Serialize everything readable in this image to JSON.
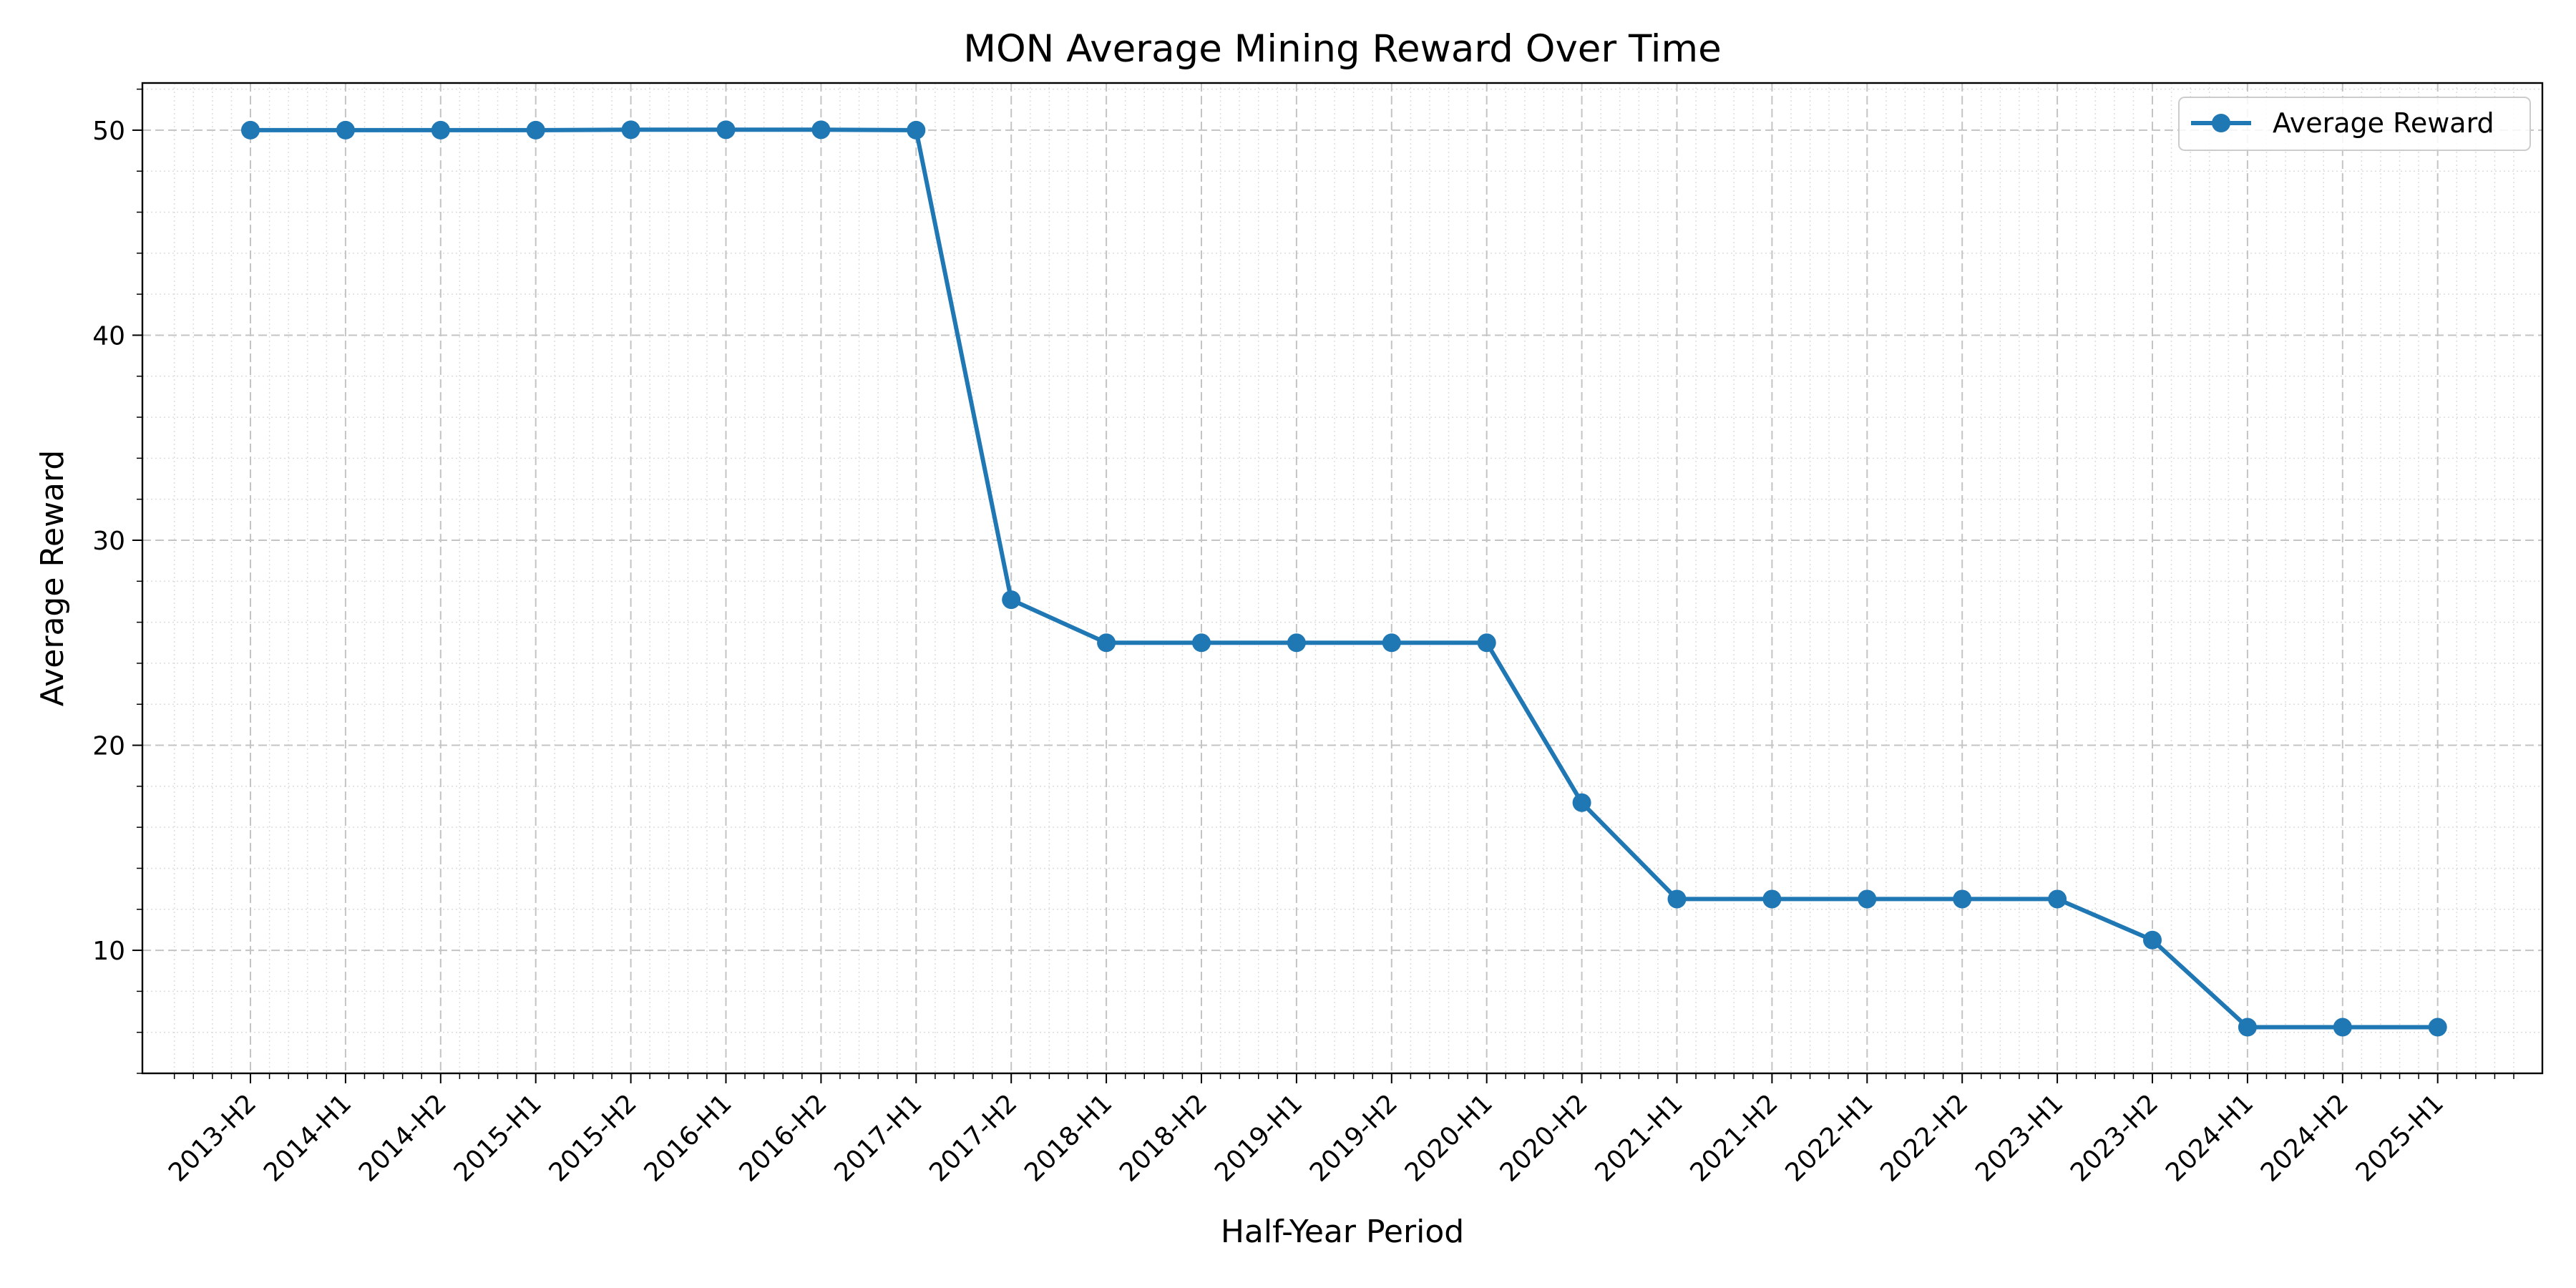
{
  "chart_data": {
    "type": "line",
    "title": "MON Average Mining Reward Over Time",
    "xlabel": "Half-Year Period",
    "ylabel": "Average Reward",
    "categories": [
      "2013-H2",
      "2014-H1",
      "2014-H2",
      "2015-H1",
      "2015-H2",
      "2016-H1",
      "2016-H2",
      "2017-H1",
      "2017-H2",
      "2018-H1",
      "2018-H2",
      "2019-H1",
      "2019-H2",
      "2020-H1",
      "2020-H2",
      "2021-H1",
      "2021-H2",
      "2022-H1",
      "2022-H2",
      "2023-H1",
      "2023-H2",
      "2024-H1",
      "2024-H2",
      "2025-H1"
    ],
    "series": [
      {
        "name": "Average Reward",
        "color": "#1f77b4",
        "marker": "circle",
        "values": [
          50.0,
          50.0,
          50.0,
          50.0,
          50.02,
          50.02,
          50.02,
          50.0,
          27.1,
          25.0,
          25.0,
          25.0,
          25.0,
          25.0,
          17.2,
          12.5,
          12.5,
          12.5,
          12.5,
          12.5,
          10.5,
          6.25,
          6.25,
          6.25
        ]
      }
    ],
    "ylim": [
      4.0,
      52.3
    ],
    "yticks": [
      10,
      20,
      30,
      40,
      50
    ],
    "grid": {
      "major": true,
      "minor": true,
      "major_style": "dashed",
      "minor_style": "dotted"
    },
    "legend": {
      "placement": "top-right"
    }
  }
}
